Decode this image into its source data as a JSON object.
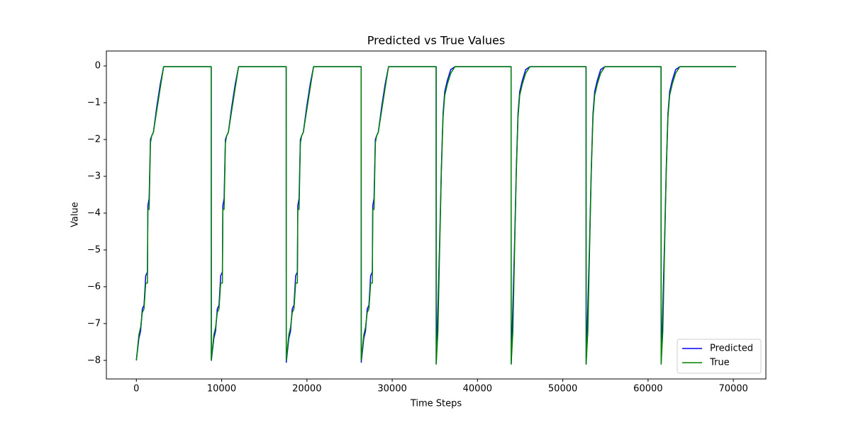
{
  "chart_data": {
    "type": "line",
    "title": "Predicted vs True Values",
    "x_label": "Time Steps",
    "y_label": "Value",
    "x": [
      0,
      300,
      500,
      700,
      900,
      1100,
      1300,
      1350,
      1500,
      1650,
      1800,
      2000,
      2400,
      2800,
      3200,
      8780,
      8790,
      9090,
      9290,
      9490,
      9690,
      9890,
      10090,
      10140,
      10290,
      10440,
      10590,
      10790,
      11190,
      11590,
      11990,
      17570,
      17580,
      17880,
      18080,
      18280,
      18480,
      18680,
      18880,
      18930,
      19080,
      19230,
      19380,
      19580,
      19980,
      20380,
      20780,
      26360,
      26370,
      26670,
      26870,
      27070,
      27270,
      27470,
      27670,
      27720,
      27870,
      28020,
      28170,
      28370,
      28770,
      29170,
      29570,
      35150,
      35160,
      35360,
      35560,
      35760,
      35960,
      36160,
      36460,
      36860,
      37360,
      43940,
      43950,
      44150,
      44350,
      44550,
      44750,
      44950,
      45250,
      45650,
      46150,
      52730,
      52740,
      52940,
      53140,
      53340,
      53540,
      53740,
      54040,
      54440,
      54940,
      61520,
      61530,
      61730,
      61930,
      62130,
      62330,
      62530,
      62830,
      63230,
      63730,
      70300
    ],
    "series": [
      {
        "name": "Predicted",
        "color": "#0000ff",
        "values": [
          -8,
          -7.4,
          -7.2,
          -6.6,
          -6.5,
          -5.7,
          -5.6,
          -3.8,
          -3.6,
          -2.0,
          -1.9,
          -1.8,
          -1.1,
          -0.5,
          -0.02,
          -0.02,
          -8,
          -7.4,
          -7.2,
          -6.6,
          -6.5,
          -5.7,
          -5.6,
          -3.8,
          -3.6,
          -2.0,
          -1.9,
          -1.8,
          -1.1,
          -0.5,
          -0.02,
          -0.02,
          -8.05,
          -7.4,
          -7.2,
          -6.6,
          -6.5,
          -5.7,
          -5.6,
          -3.8,
          -3.6,
          -2.0,
          -1.9,
          -1.8,
          -1.1,
          -0.5,
          -0.02,
          -0.02,
          -8.05,
          -7.4,
          -7.2,
          -6.6,
          -6.5,
          -5.7,
          -5.6,
          -3.8,
          -3.6,
          -2.0,
          -1.9,
          -1.8,
          -1.1,
          -0.5,
          -0.02,
          -0.02,
          -8.1,
          -6.5,
          -4.8,
          -2.8,
          -1.3,
          -0.7,
          -0.4,
          -0.1,
          -0.02,
          -0.02,
          -8.1,
          -6.5,
          -4.8,
          -2.8,
          -1.3,
          -0.7,
          -0.4,
          -0.1,
          -0.02,
          -0.02,
          -8.1,
          -6.5,
          -4.8,
          -2.8,
          -1.3,
          -0.7,
          -0.4,
          -0.1,
          -0.02,
          -0.02,
          -8.1,
          -6.5,
          -4.8,
          -2.8,
          -1.3,
          -0.7,
          -0.4,
          -0.1,
          -0.02,
          -0.02
        ]
      },
      {
        "name": "True",
        "color": "#008000",
        "values": [
          -8,
          -7.3,
          -7.1,
          -6.7,
          -6.6,
          -5.9,
          -5.9,
          -3.9,
          -3.9,
          -2.1,
          -1.9,
          -1.8,
          -1.2,
          -0.6,
          -0.02,
          -0.02,
          -8,
          -7.3,
          -7.1,
          -6.7,
          -6.6,
          -5.9,
          -5.9,
          -3.9,
          -3.9,
          -2.1,
          -1.9,
          -1.8,
          -1.2,
          -0.6,
          -0.02,
          -0.02,
          -8,
          -7.3,
          -7.1,
          -6.7,
          -6.6,
          -5.9,
          -5.9,
          -3.9,
          -3.9,
          -2.1,
          -1.9,
          -1.8,
          -1.2,
          -0.6,
          -0.02,
          -0.02,
          -8,
          -7.3,
          -7.1,
          -6.7,
          -6.6,
          -5.9,
          -5.9,
          -3.9,
          -3.9,
          -2.1,
          -1.9,
          -1.8,
          -1.2,
          -0.6,
          -0.02,
          -0.02,
          -8.1,
          -7.2,
          -5,
          -2.9,
          -1.4,
          -0.8,
          -0.5,
          -0.2,
          -0.02,
          -0.02,
          -8.1,
          -7.2,
          -5,
          -2.9,
          -1.4,
          -0.8,
          -0.5,
          -0.2,
          -0.02,
          -0.02,
          -8.1,
          -7.2,
          -5,
          -2.9,
          -1.4,
          -0.8,
          -0.5,
          -0.2,
          -0.02,
          -0.02,
          -8.1,
          -7.2,
          -5,
          -2.9,
          -1.4,
          -0.8,
          -0.5,
          -0.2,
          -0.02,
          -0.02
        ]
      }
    ],
    "xlim": [
      -3515,
      73815
    ],
    "ylim": [
      -8.505,
      0.405
    ],
    "xticks": [
      0,
      10000,
      20000,
      30000,
      40000,
      50000,
      60000,
      70000
    ],
    "yticks": [
      0,
      {
        "value": -1,
        "label": "−1"
      },
      {
        "value": -2,
        "label": "−2"
      },
      {
        "value": -3,
        "label": "−3"
      },
      {
        "value": -4,
        "label": "−4"
      },
      {
        "value": -5,
        "label": "−5"
      },
      {
        "value": -6,
        "label": "−6"
      },
      {
        "value": -7,
        "label": "−7"
      },
      {
        "value": -8,
        "label": "−8"
      }
    ],
    "grid": false,
    "legend": "lower right"
  }
}
